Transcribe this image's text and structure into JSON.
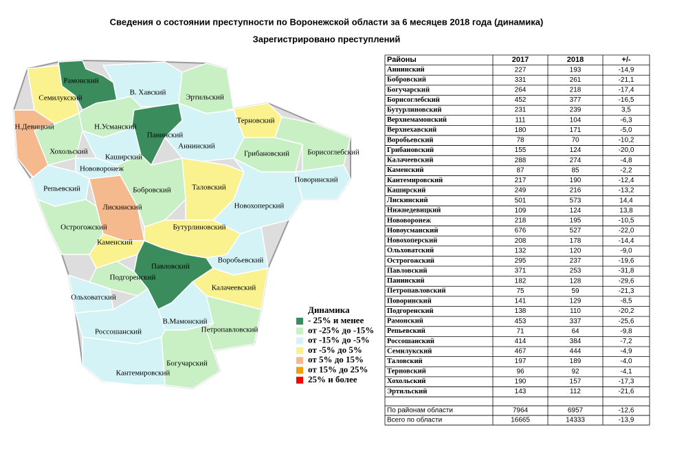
{
  "header": {
    "title": "Сведения о состоянии преступности по Воронежской области  за 6 месяцев 2018 года (динамика)",
    "subtitle": "Зарегистрировано преступлений"
  },
  "map": {
    "districts": [
      {
        "label": "Рамонский",
        "color": "#3b8c5c"
      },
      {
        "label": "В. Хавский",
        "color": "#d4f3f6"
      },
      {
        "label": "Эртильский",
        "color": "#c9efc4"
      },
      {
        "label": "Семилукский",
        "color": "#f9f28f"
      },
      {
        "label": "Н.Девицкий",
        "color": "#f5b98e"
      },
      {
        "label": "Н.Усманский",
        "color": "#c9efc4"
      },
      {
        "label": "Панинский",
        "color": "#3b8c5c"
      },
      {
        "label": "Аннинский",
        "color": "#d4f3f6"
      },
      {
        "label": "Терновский",
        "color": "#f9f28f"
      },
      {
        "label": "Грибановский",
        "color": "#c9efc4"
      },
      {
        "label": "Борисоглебский",
        "color": "#c9efc4"
      },
      {
        "label": "Хохольский",
        "color": "#c9efc4"
      },
      {
        "label": "Каширский",
        "color": "#d4f3f6"
      },
      {
        "label": "Нововоронеж",
        "color": "#d4f3f6"
      },
      {
        "label": "Поворинский",
        "color": "#d4f3f6"
      },
      {
        "label": "Репьевский",
        "color": "#d4f3f6"
      },
      {
        "label": "Таловский",
        "color": "#f9f28f"
      },
      {
        "label": "Лискинский",
        "color": "#f5b98e"
      },
      {
        "label": "Бобровский",
        "color": "#c9efc4"
      },
      {
        "label": "Новохоперский",
        "color": "#d4f3f6"
      },
      {
        "label": "Острогожский",
        "color": "#c9efc4"
      },
      {
        "label": "Бутурлиновский",
        "color": "#f9f28f"
      },
      {
        "label": "Каменский",
        "color": "#f9f28f"
      },
      {
        "label": "Воробьевский",
        "color": "#d4f3f6"
      },
      {
        "label": "Павловский",
        "color": "#3b8c5c"
      },
      {
        "label": "Подгоренский",
        "color": "#c9efc4"
      },
      {
        "label": "Калачеевский",
        "color": "#f9f28f"
      },
      {
        "label": "Ольховатский",
        "color": "#d4f3f6"
      },
      {
        "label": "В.Мамонский",
        "color": "#d4f3f6"
      },
      {
        "label": "Петропавловский",
        "color": "#c9efc4"
      },
      {
        "label": "Россошанский",
        "color": "#d4f3f6"
      },
      {
        "label": "Богучарский",
        "color": "#c9efc4"
      },
      {
        "label": "Кантемировский",
        "color": "#d4f3f6"
      }
    ]
  },
  "legend": {
    "title": "Динамика",
    "items": [
      {
        "label": "- 25% и менее",
        "color": "#3b8c5c"
      },
      {
        "label": "от -25% до -15%",
        "color": "#c9efc4"
      },
      {
        "label": "от -15% до -5%",
        "color": "#d4f3f6"
      },
      {
        "label": "от -5% до 5%",
        "color": "#f9f28f"
      },
      {
        "label": "от 5% до 15%",
        "color": "#f5b98e"
      },
      {
        "label": "от 15% до 25%",
        "color": "#f5a000"
      },
      {
        "label": "25% и более",
        "color": "#ff0000"
      }
    ]
  },
  "table": {
    "columns": [
      "Районы",
      "2017",
      "2018",
      "+/-"
    ],
    "rows": [
      [
        "Аннинский",
        227,
        193,
        "-14,9"
      ],
      [
        "Бобровский",
        331,
        261,
        "-21,1"
      ],
      [
        "Богучарский",
        264,
        218,
        "-17,4"
      ],
      [
        "Борисоглебский",
        452,
        377,
        "-16,5"
      ],
      [
        "Бутурлиновский",
        231,
        239,
        "3,5"
      ],
      [
        "Верхнемамонский",
        111,
        104,
        "-6,3"
      ],
      [
        "Верхнехавский",
        180,
        171,
        "-5,0"
      ],
      [
        "Воробьевский",
        78,
        70,
        "-10,2"
      ],
      [
        "Грибановский",
        155,
        124,
        "-20,0"
      ],
      [
        "Калачеевский",
        288,
        274,
        "-4,8"
      ],
      [
        "Каменский",
        87,
        85,
        "-2,2"
      ],
      [
        "Кантемировский",
        217,
        190,
        "-12,4"
      ],
      [
        "Каширский",
        249,
        216,
        "-13,2"
      ],
      [
        "Лискинский",
        501,
        573,
        "14,4"
      ],
      [
        "Нижнедевицкий",
        109,
        124,
        "13,8"
      ],
      [
        "Нововоронеж",
        218,
        195,
        "-10,5"
      ],
      [
        "Новоусманский",
        676,
        527,
        "-22,0"
      ],
      [
        "Новохоперский",
        208,
        178,
        "-14,4"
      ],
      [
        "Ольховатский",
        132,
        120,
        "-9,0"
      ],
      [
        "Острогожский",
        295,
        237,
        "-19,6"
      ],
      [
        "Павловский",
        371,
        253,
        "-31,8"
      ],
      [
        "Панинский",
        182,
        128,
        "-29,6"
      ],
      [
        "Петропавловский",
        75,
        59,
        "-21,3"
      ],
      [
        "Поворинский",
        141,
        129,
        "-8,5"
      ],
      [
        "Подгоренский",
        138,
        110,
        "-20,2"
      ],
      [
        "Рамонский",
        453,
        337,
        "-25,6"
      ],
      [
        "Репьевский",
        71,
        64,
        "-9,8"
      ],
      [
        "Россошанский",
        414,
        384,
        "-7,2"
      ],
      [
        "Семилукский",
        467,
        444,
        "-4,9"
      ],
      [
        "Таловский",
        197,
        189,
        "-4,0"
      ],
      [
        "Терновский",
        96,
        92,
        "-4,1"
      ],
      [
        "Хохольский",
        190,
        157,
        "-17,3"
      ],
      [
        "Эртильский",
        143,
        112,
        "-21,6"
      ]
    ],
    "totals": [
      [
        "По районам области",
        7964,
        6957,
        "-12,6"
      ],
      [
        "Всего по области",
        16665,
        14333,
        "-13,9"
      ]
    ]
  }
}
